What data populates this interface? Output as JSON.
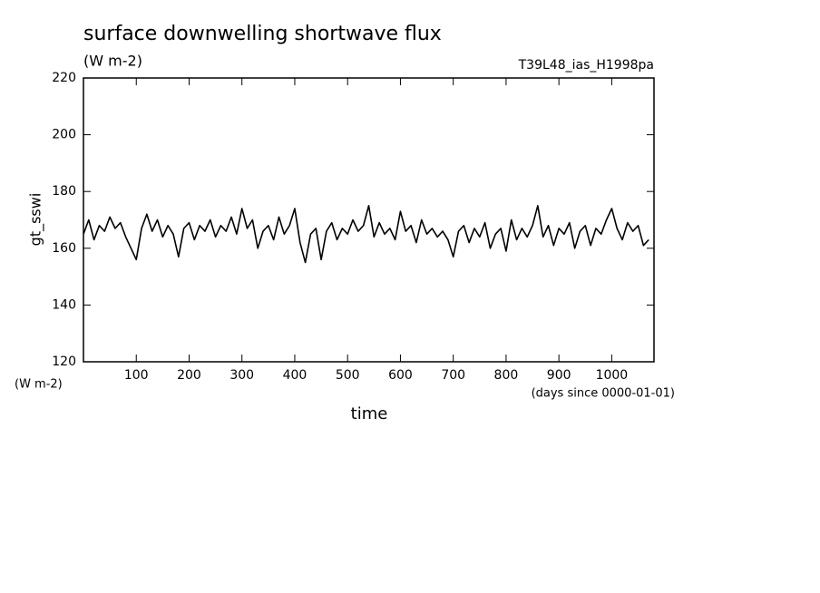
{
  "chart_data": {
    "type": "line",
    "title": "surface downwelling shortwave flux",
    "subtitle": "(W m-2)",
    "run_label": "T39L48_ias_H1998pa",
    "y_label": "gt_sswi",
    "y_unit": "(W m-2)",
    "x_label": "time",
    "x_unit": "(days since 0000-01-01)",
    "x": [
      0,
      10,
      20,
      30,
      40,
      50,
      60,
      70,
      80,
      90,
      100,
      110,
      120,
      130,
      140,
      150,
      160,
      170,
      180,
      190,
      200,
      210,
      220,
      230,
      240,
      250,
      260,
      270,
      280,
      290,
      300,
      310,
      320,
      330,
      340,
      350,
      360,
      370,
      380,
      390,
      400,
      410,
      420,
      430,
      440,
      450,
      460,
      470,
      480,
      490,
      500,
      510,
      520,
      530,
      540,
      550,
      560,
      570,
      580,
      590,
      600,
      610,
      620,
      630,
      640,
      650,
      660,
      670,
      680,
      690,
      700,
      710,
      720,
      730,
      740,
      750,
      760,
      770,
      780,
      790,
      800,
      810,
      820,
      830,
      840,
      850,
      860,
      870,
      880,
      890,
      900,
      910,
      920,
      930,
      940,
      950,
      960,
      970,
      980,
      990,
      1000,
      1010,
      1020,
      1030,
      1040,
      1050,
      1060,
      1070
    ],
    "series": [
      {
        "color": "#000000",
        "values": [
          165,
          170,
          163,
          168,
          166,
          171,
          167,
          169,
          164,
          160,
          156,
          167,
          172,
          166,
          170,
          164,
          168,
          165,
          157,
          167,
          169,
          163,
          168,
          166,
          170,
          164,
          168,
          166,
          171,
          165,
          174,
          167,
          170,
          160,
          166,
          168,
          163,
          171,
          165,
          168,
          174,
          162,
          155,
          165,
          167,
          156,
          166,
          169,
          163,
          167,
          165,
          170,
          166,
          168,
          175,
          164,
          169,
          165,
          167,
          163,
          173,
          166,
          168,
          162,
          170,
          165,
          167,
          164,
          166,
          163,
          157,
          166,
          168,
          162,
          167,
          164,
          169,
          160,
          165,
          167,
          159,
          170,
          163,
          167,
          164,
          168,
          175,
          164,
          168,
          161,
          167,
          165,
          169,
          160,
          166,
          168,
          161,
          167,
          165,
          170,
          174,
          167,
          163,
          169,
          166,
          168,
          161,
          163
        ]
      }
    ],
    "xlim": [
      0,
      1080
    ],
    "ylim": [
      120,
      220
    ],
    "xticks": [
      100,
      200,
      300,
      400,
      500,
      600,
      700,
      800,
      900,
      1000
    ],
    "yticks": [
      120,
      140,
      160,
      180,
      200,
      220
    ]
  }
}
